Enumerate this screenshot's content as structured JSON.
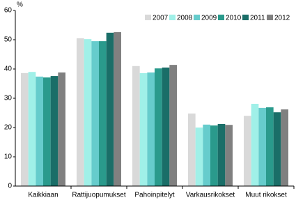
{
  "chart_data": {
    "type": "bar",
    "ylabel": "%",
    "categories": [
      "Kaikkiaan",
      "Rattijuopumukset",
      "Pahoinpitelyt",
      "Varkausrikokset",
      "Muut rikokset"
    ],
    "series": [
      {
        "name": "2007",
        "color": "#d9d9d9",
        "values": [
          38.6,
          50.5,
          41.0,
          24.8,
          24.0
        ]
      },
      {
        "name": "2008",
        "color": "#a0f0e8",
        "values": [
          39.0,
          50.2,
          38.6,
          20.0,
          28.1
        ]
      },
      {
        "name": "2009",
        "color": "#66cccc",
        "values": [
          37.4,
          49.5,
          38.8,
          21.0,
          26.7
        ]
      },
      {
        "name": "2010",
        "color": "#2a9a8c",
        "values": [
          37.1,
          49.5,
          40.2,
          20.7,
          26.9
        ]
      },
      {
        "name": "2011",
        "color": "#1a6e68",
        "values": [
          37.6,
          52.4,
          40.5,
          21.2,
          25.2
        ]
      },
      {
        "name": "2012",
        "color": "#808080",
        "values": [
          38.8,
          52.6,
          41.4,
          20.9,
          26.2
        ]
      }
    ],
    "ylim": [
      0,
      60
    ],
    "yticks": [
      0,
      10,
      20,
      30,
      40,
      50,
      60
    ],
    "grid": false,
    "legend": "top-right"
  }
}
